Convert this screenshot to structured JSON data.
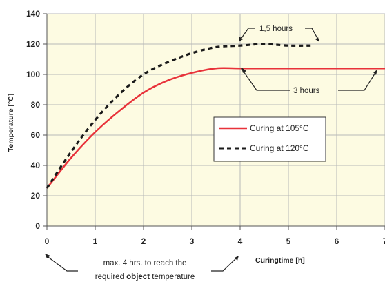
{
  "chart_data": {
    "type": "line",
    "xlabel": "Curingtime  [h]",
    "ylabel": "Temperature [°C]",
    "xlim": [
      0,
      7
    ],
    "ylim": [
      0,
      140
    ],
    "x_ticks": [
      "0",
      "1",
      "2",
      "3",
      "4",
      "5",
      "6",
      "7"
    ],
    "y_ticks": [
      "0",
      "20",
      "40",
      "60",
      "80",
      "100",
      "120",
      "140"
    ],
    "grid": true,
    "legend_position": "center-right",
    "series": [
      {
        "name": "Curing at 105°C",
        "style": "solid",
        "color": "#e8323a",
        "x": [
          0,
          0.5,
          1,
          1.5,
          2,
          2.5,
          3,
          3.5,
          4,
          5,
          6,
          7
        ],
        "y": [
          25,
          45,
          62,
          76,
          88,
          96,
          101,
          104,
          104,
          104,
          104,
          104
        ]
      },
      {
        "name": "Curing at 120°C",
        "style": "dashed",
        "color": "#1a1a1a",
        "x": [
          0,
          0.5,
          1,
          1.5,
          2,
          2.5,
          3,
          3.5,
          4,
          4.5,
          5,
          5.5
        ],
        "y": [
          25,
          49,
          70,
          87,
          100,
          108,
          114,
          118,
          119,
          120,
          119,
          119
        ]
      }
    ],
    "annotations": {
      "hours_15": "1,5 hours",
      "hours_3": "3 hours",
      "bottom_line1": "max. 4 hrs. to reach the",
      "bottom_line2_pre": "required ",
      "bottom_line2_bold": "object",
      "bottom_line2_post": " temperature"
    }
  },
  "colors": {
    "plot_background": "#fdfbe2",
    "grid": "#b8b8b8",
    "axis": "#555555"
  }
}
